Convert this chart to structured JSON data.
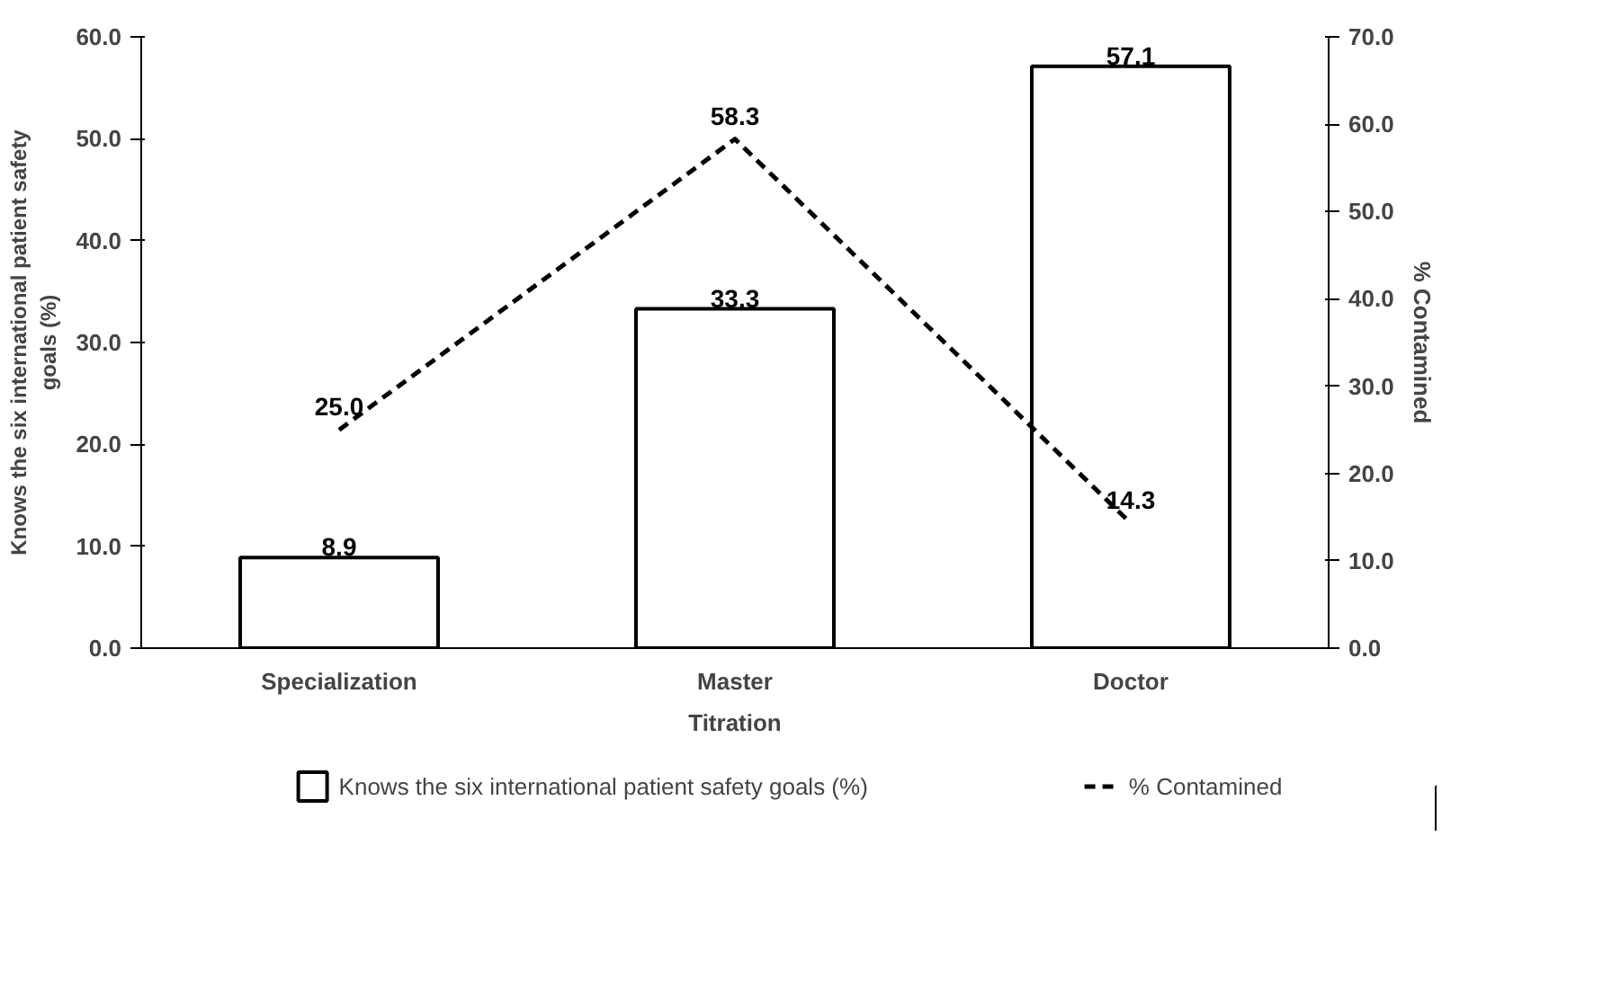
{
  "chart_data": {
    "type": "bar",
    "xlabel": "Titration",
    "ylabel": "Knows the six international patient safety goals (%)",
    "y2label": "% Contamined",
    "categories": [
      "Specialization",
      "Master",
      "Doctor"
    ],
    "series": [
      {
        "name": "Knows the six international patient safety goals (%)",
        "color": "#ffffff",
        "values": [
          8.9,
          33.3,
          57.1
        ]
      },
      {
        "name": "% Contamined",
        "type": "line",
        "axis": "y2",
        "color": "#000000",
        "line_style": "dashed",
        "values": [
          25.0,
          58.3,
          14.3
        ],
        "value_labels": [
          "25.0",
          "58.3",
          "14.3"
        ]
      }
    ],
    "ylim": [
      0,
      60
    ],
    "yticks": [
      {
        "value": 0,
        "label": "0.0"
      },
      {
        "value": 10,
        "label": "10.0"
      },
      {
        "value": 20,
        "label": "20.0"
      },
      {
        "value": 30,
        "label": "30.0"
      },
      {
        "value": 40,
        "label": "40.0"
      },
      {
        "value": 50,
        "label": "50.0"
      },
      {
        "value": 60,
        "label": "60.0"
      }
    ],
    "y2lim": [
      0,
      70
    ],
    "y2ticks": [
      {
        "value": 0,
        "label": "0.0"
      },
      {
        "value": 10,
        "label": "10.0"
      },
      {
        "value": 20,
        "label": "20.0"
      },
      {
        "value": 30,
        "label": "30.0"
      },
      {
        "value": 40,
        "label": "40.0"
      },
      {
        "value": 50,
        "label": "50.0"
      },
      {
        "value": 60,
        "label": "60.0"
      },
      {
        "value": 70,
        "label": "70.0"
      }
    ],
    "data_labels": true,
    "legend": "bottom",
    "grid": false
  }
}
